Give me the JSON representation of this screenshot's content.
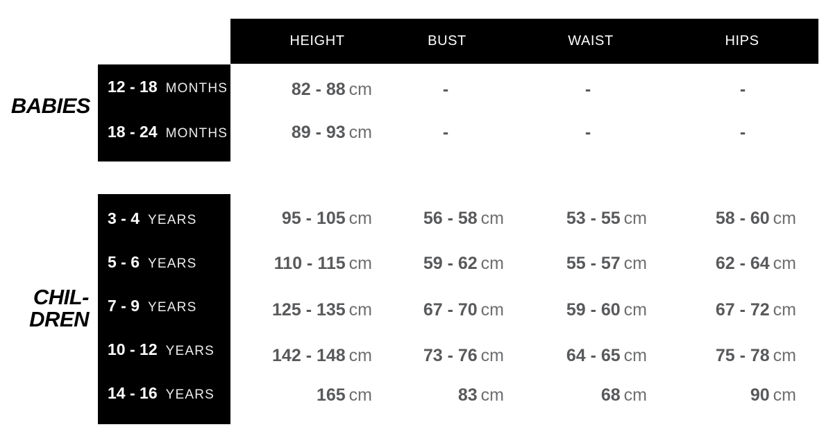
{
  "colors": {
    "background": "#ffffff",
    "header_bg": "#000000",
    "header_text": "#ffffff",
    "age_box_bg": "#000000",
    "age_number_text": "#ffffff",
    "age_unit_text": "#ededed",
    "value_number_text": "#58595b",
    "value_unit_text": "#6d6e70",
    "section_label_text": "#000000"
  },
  "header": {
    "columns": [
      "HEIGHT",
      "BUST",
      "WAIST",
      "HIPS"
    ]
  },
  "babies": {
    "label": "BABIES",
    "rows": [
      {
        "age": "12 - 18",
        "age_unit": "MONTHS",
        "height_num": "82 - 88",
        "height_unit": "cm",
        "bust": "-",
        "waist": "-",
        "hips": "-"
      },
      {
        "age": "18 - 24",
        "age_unit": "MONTHS",
        "height_num": "89 - 93",
        "height_unit": "cm",
        "bust": "-",
        "waist": "-",
        "hips": "-"
      }
    ]
  },
  "children": {
    "label_line1": "CHIL-",
    "label_line2": "DREN",
    "rows": [
      {
        "age": "3 - 4",
        "age_unit": "YEARS",
        "height_num": "95 - 105",
        "height_unit": "cm",
        "bust_num": "56 - 58",
        "bust_unit": "cm",
        "waist_num": "53 - 55",
        "waist_unit": "cm",
        "hips_num": "58 - 60",
        "hips_unit": "cm"
      },
      {
        "age": "5 - 6",
        "age_unit": "YEARS",
        "height_num": "110 - 115",
        "height_unit": "cm",
        "bust_num": "59 - 62",
        "bust_unit": "cm",
        "waist_num": "55 - 57",
        "waist_unit": "cm",
        "hips_num": "62 - 64",
        "hips_unit": "cm"
      },
      {
        "age": "7 - 9",
        "age_unit": "YEARS",
        "height_num": "125 - 135",
        "height_unit": "cm",
        "bust_num": "67 - 70",
        "bust_unit": "cm",
        "waist_num": "59 - 60",
        "waist_unit": "cm",
        "hips_num": "67 - 72",
        "hips_unit": "cm"
      },
      {
        "age": "10 - 12",
        "age_unit": "YEARS",
        "height_num": "142 - 148",
        "height_unit": "cm",
        "bust_num": "73 - 76",
        "bust_unit": "cm",
        "waist_num": "64 - 65",
        "waist_unit": "cm",
        "hips_num": "75 - 78",
        "hips_unit": "cm"
      },
      {
        "age": "14 - 16",
        "age_unit": "YEARS",
        "height_num": "165",
        "height_unit": "cm",
        "bust_num": "83",
        "bust_unit": "cm",
        "waist_num": "68",
        "waist_unit": "cm",
        "hips_num": "90",
        "hips_unit": "cm"
      }
    ]
  }
}
